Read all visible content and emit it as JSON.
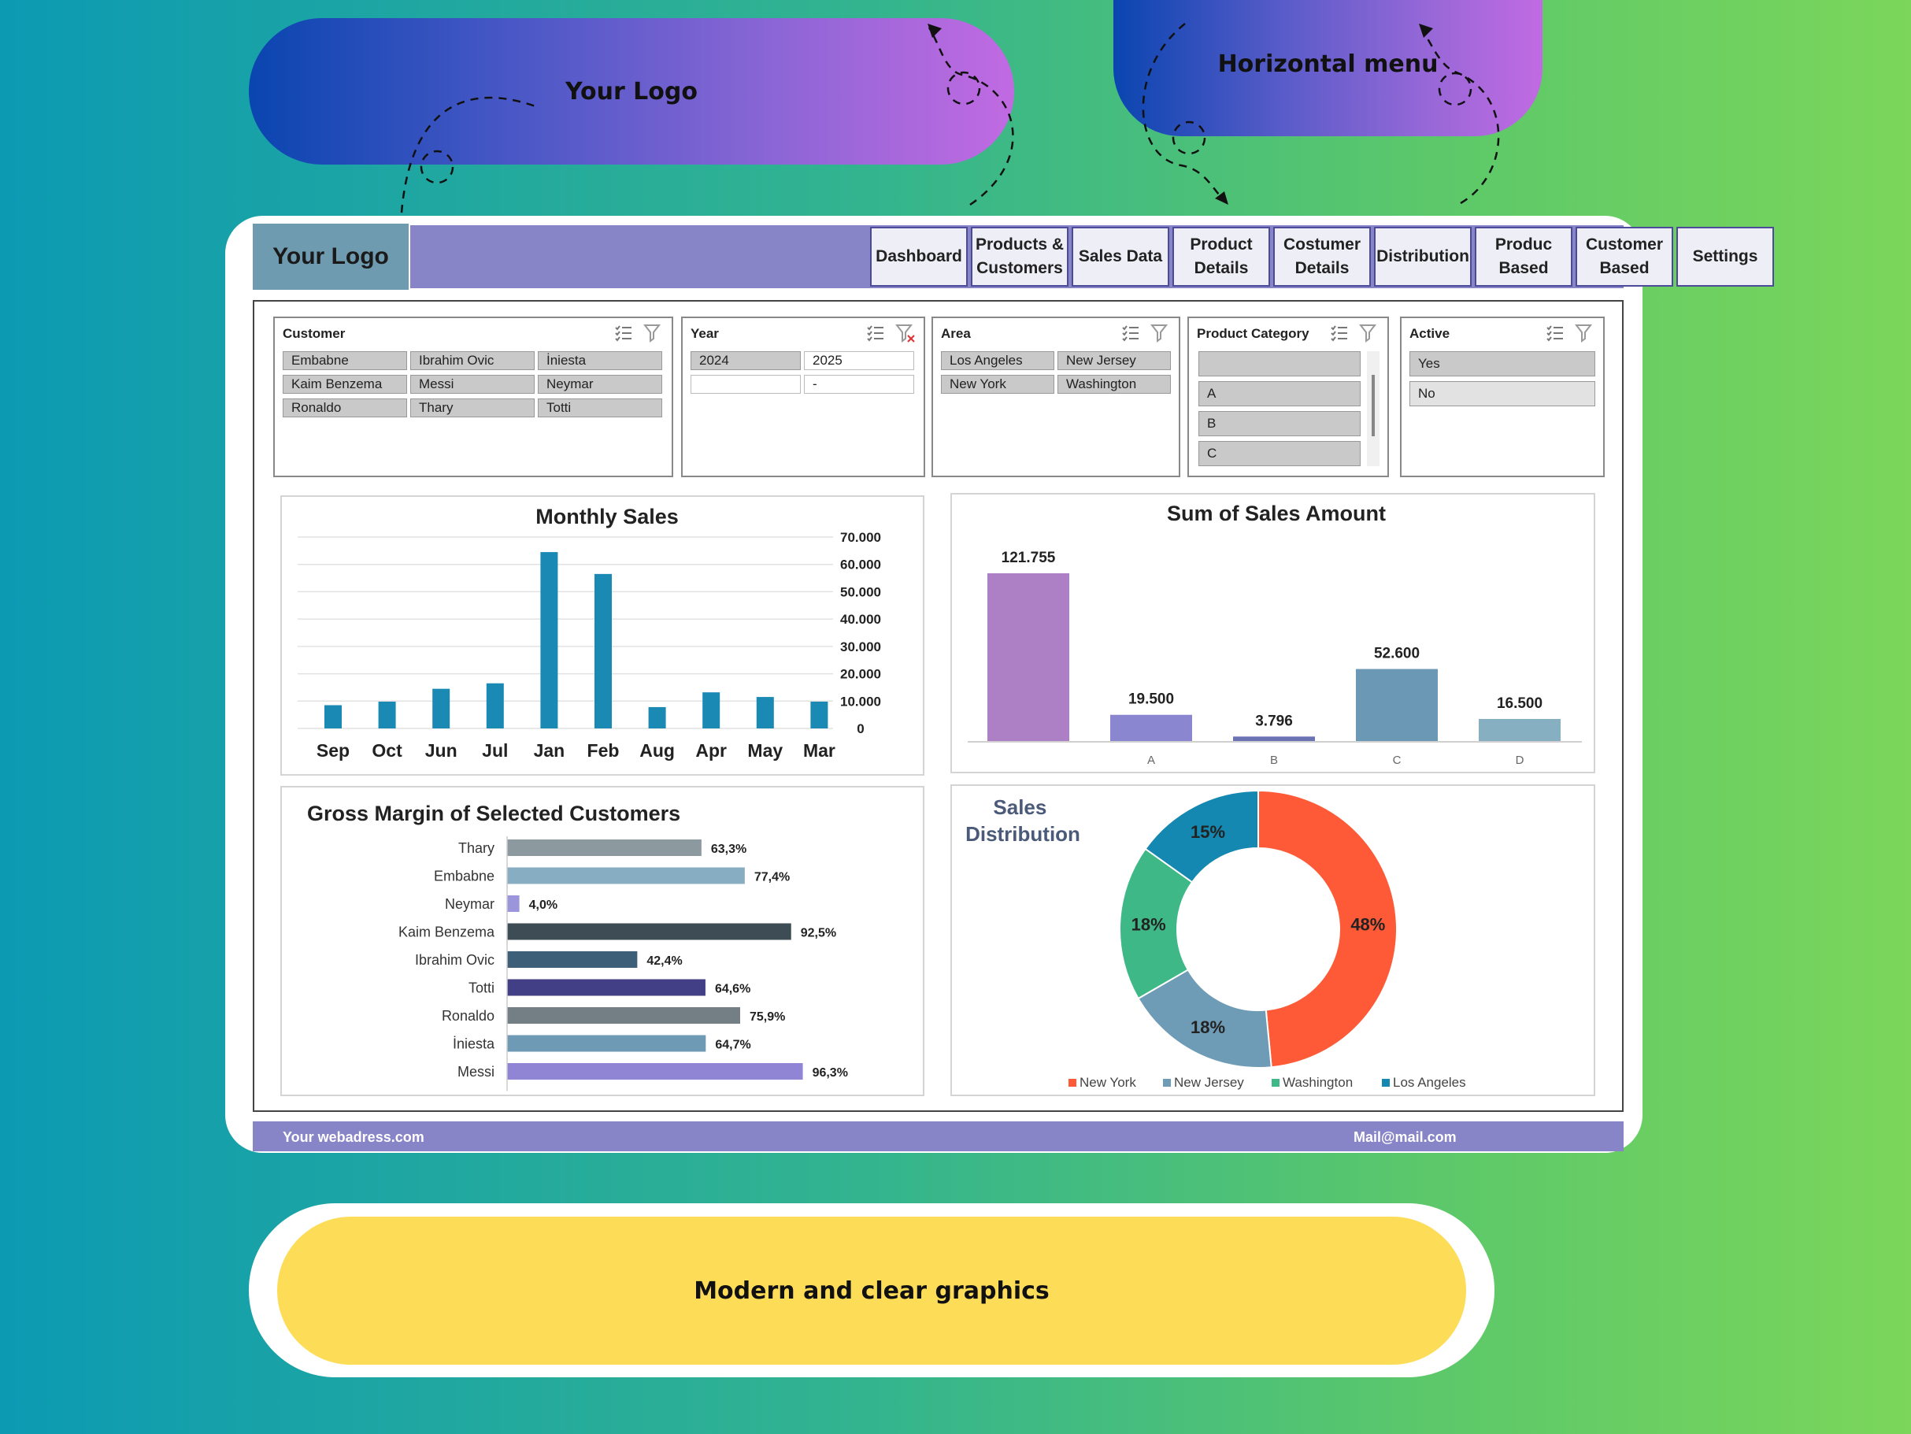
{
  "callouts": {
    "logo_pill": "Your Logo",
    "menu_pill": "Horizontal menu",
    "bottom_pill": "Modern and clear graphics"
  },
  "header": {
    "logo": "Your Logo",
    "nav": [
      {
        "line1": "Dashboard",
        "line2": ""
      },
      {
        "line1": "Products &",
        "line2": "Customers"
      },
      {
        "line1": "Sales Data",
        "line2": ""
      },
      {
        "line1": "Product",
        "line2": "Details"
      },
      {
        "line1": "Costumer",
        "line2": "Details"
      },
      {
        "line1": "Distribution",
        "line2": ""
      },
      {
        "line1": "Produc",
        "line2": "Based"
      },
      {
        "line1": "Customer",
        "line2": "Based"
      },
      {
        "line1": "Settings",
        "line2": ""
      }
    ]
  },
  "slicers": {
    "customer": {
      "title": "Customer",
      "items": [
        "Embabne",
        "Ibrahim Ovic",
        "İniesta",
        "Kaim Benzema",
        "Messi",
        "Neymar",
        "Ronaldo",
        "Thary",
        "Totti"
      ]
    },
    "year": {
      "title": "Year",
      "items": [
        "2024",
        "2025",
        "",
        "-"
      ]
    },
    "area": {
      "title": "Area",
      "items": [
        "Los Angeles",
        "New Jersey",
        "New York",
        "Washington"
      ]
    },
    "product_category": {
      "title": "Product Category",
      "items": [
        "",
        "A",
        "B",
        "C"
      ]
    },
    "active": {
      "title": "Active",
      "items": [
        "Yes",
        "No"
      ]
    }
  },
  "colors": {
    "accent": "#8784c7",
    "bar_blue": "#1a8ab5",
    "pie": [
      "#fe5a37",
      "#6e9bb5",
      "#3fb887",
      "#1488b0"
    ]
  },
  "footer": {
    "left": "Your webadress.com",
    "right": "Mail@mail.com"
  },
  "chart_data": [
    {
      "type": "bar",
      "title": "Monthly Sales",
      "categories": [
        "Sep",
        "Oct",
        "Jun",
        "Jul",
        "Jan",
        "Feb",
        "Aug",
        "Apr",
        "May",
        "Mar"
      ],
      "values": [
        8500,
        9800,
        14500,
        16500,
        64500,
        56500,
        7800,
        13200,
        11500,
        9800
      ],
      "ylim": [
        0,
        70000
      ],
      "yticks": [
        "0",
        "10.000",
        "20.000",
        "30.000",
        "40.000",
        "50.000",
        "60.000",
        "70.000"
      ],
      "y_axis_side": "right",
      "grid": true
    },
    {
      "type": "bar",
      "title": "Sum of Sales Amount",
      "categories": [
        "",
        "A",
        "B",
        "C",
        "D"
      ],
      "values": [
        121755,
        19500,
        3796,
        52600,
        16500
      ],
      "labels": [
        "121.755",
        "19.500",
        "3.796",
        "52.600",
        "16.500"
      ],
      "colors": [
        "#ad80c6",
        "#8a86d0",
        "#6b73b3",
        "#6a98b5",
        "#86b0c2"
      ]
    },
    {
      "type": "bar",
      "orientation": "horizontal",
      "title": "Gross Margin of Selected Customers",
      "categories": [
        "Thary",
        "Embabne",
        "Neymar",
        "Kaim Benzema",
        "Ibrahim Ovic",
        "Totti",
        "Ronaldo",
        "İniesta",
        "Messi"
      ],
      "values": [
        63.3,
        77.4,
        4.0,
        92.5,
        42.4,
        64.6,
        75.9,
        64.7,
        96.3
      ],
      "labels": [
        "63,3%",
        "77,4%",
        "4,0%",
        "92,5%",
        "42,4%",
        "64,6%",
        "75,9%",
        "64,7%",
        "96,3%"
      ],
      "colors": [
        "#8c9aa0",
        "#87adc2",
        "#9b96dc",
        "#3e4c55",
        "#3e5f78",
        "#423f86",
        "#737f85",
        "#6e9ab5",
        "#8f85d4"
      ]
    },
    {
      "type": "pie",
      "donut": true,
      "title": "Sales Distribution",
      "categories": [
        "New York",
        "New Jersey",
        "Washington",
        "Los Angeles"
      ],
      "values": [
        48,
        18,
        18,
        15
      ],
      "labels": [
        "48%",
        "18%",
        "18%",
        "15%"
      ],
      "legend": "bottom"
    }
  ]
}
